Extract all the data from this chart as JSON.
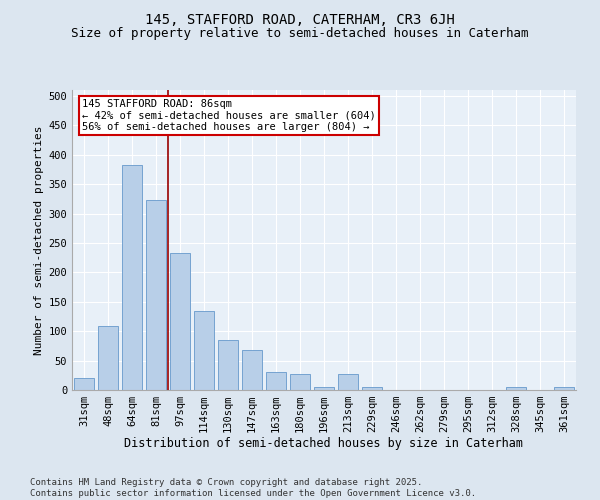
{
  "title1": "145, STAFFORD ROAD, CATERHAM, CR3 6JH",
  "title2": "Size of property relative to semi-detached houses in Caterham",
  "xlabel": "Distribution of semi-detached houses by size in Caterham",
  "ylabel": "Number of semi-detached properties",
  "categories": [
    "31sqm",
    "48sqm",
    "64sqm",
    "81sqm",
    "97sqm",
    "114sqm",
    "130sqm",
    "147sqm",
    "163sqm",
    "180sqm",
    "196sqm",
    "213sqm",
    "229sqm",
    "246sqm",
    "262sqm",
    "279sqm",
    "295sqm",
    "312sqm",
    "328sqm",
    "345sqm",
    "361sqm"
  ],
  "values": [
    20,
    108,
    383,
    323,
    233,
    135,
    85,
    68,
    30,
    28,
    5,
    28,
    5,
    0,
    0,
    0,
    0,
    0,
    5,
    0,
    5
  ],
  "bar_color": "#b8cfe8",
  "bar_edge_color": "#6699cc",
  "annotation_title": "145 STAFFORD ROAD: 86sqm",
  "annotation_line1": "← 42% of semi-detached houses are smaller (604)",
  "annotation_line2": "56% of semi-detached houses are larger (804) →",
  "annotation_box_color": "#ffffff",
  "annotation_box_edge": "#cc0000",
  "vline_color": "#990000",
  "ylim": [
    0,
    510
  ],
  "yticks": [
    0,
    50,
    100,
    150,
    200,
    250,
    300,
    350,
    400,
    450,
    500
  ],
  "background_color": "#dce6f0",
  "plot_bg_color": "#e8f0f8",
  "grid_color": "#ffffff",
  "footer": "Contains HM Land Registry data © Crown copyright and database right 2025.\nContains public sector information licensed under the Open Government Licence v3.0.",
  "title1_fontsize": 10,
  "title2_fontsize": 9,
  "xlabel_fontsize": 8.5,
  "ylabel_fontsize": 8,
  "tick_fontsize": 7.5,
  "annotation_fontsize": 7.5,
  "footer_fontsize": 6.5,
  "vline_x_index": 3.5
}
